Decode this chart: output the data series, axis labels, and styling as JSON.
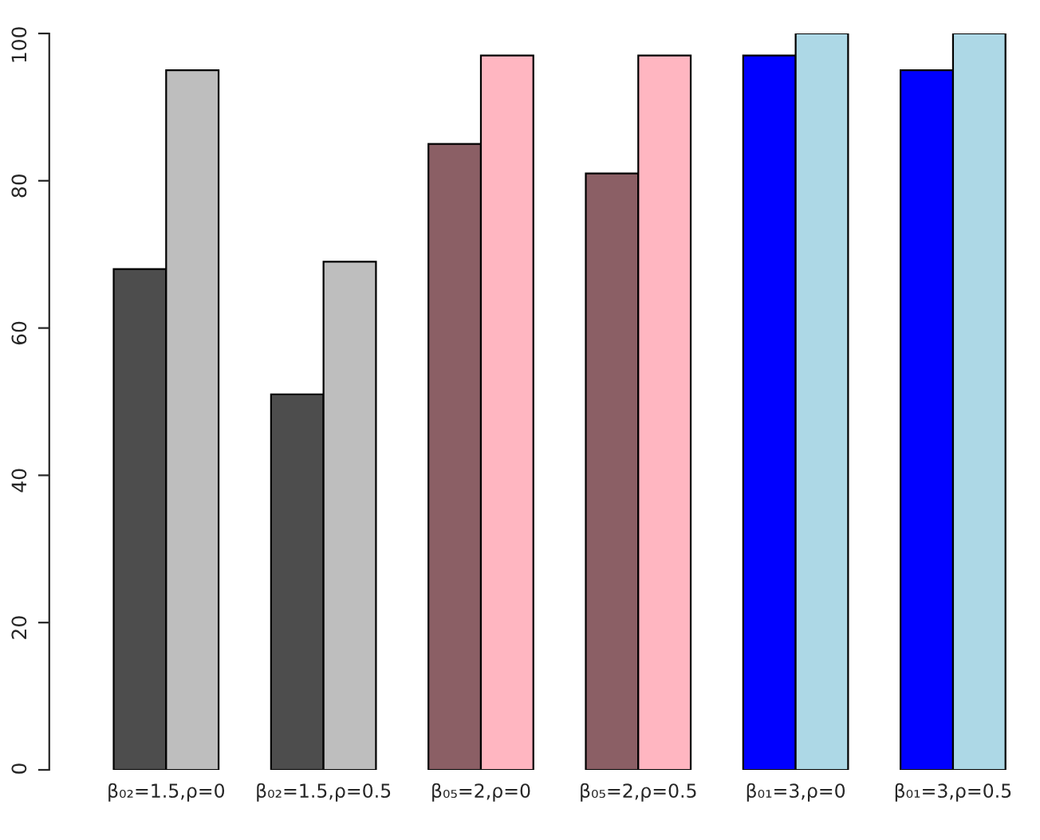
{
  "chart_data": {
    "type": "bar",
    "categories": [
      "β₀₂=1.5,ρ=0",
      "β₀₂=1.5,ρ=0.5",
      "β₀₅=2,ρ=0",
      "β₀₅=2,ρ=0.5",
      "β₀₁=3,ρ=0",
      "β₀₁=3,ρ=0.5"
    ],
    "series": [
      {
        "colors": [
          "#4d4d4d",
          "#4d4d4d",
          "#8b5f65",
          "#8b5f65",
          "#0000ff",
          "#0000ff"
        ],
        "values": [
          68,
          51,
          85,
          81,
          97,
          95
        ]
      },
      {
        "colors": [
          "#bebebe",
          "#bebebe",
          "#ffb6c1",
          "#ffb6c1",
          "#add8e6",
          "#add8e6"
        ],
        "values": [
          95,
          69,
          97,
          97,
          100,
          100
        ]
      }
    ],
    "ylim": [
      0,
      100
    ],
    "yticks": [
      0,
      20,
      40,
      60,
      80,
      100
    ],
    "grid": false,
    "legend": false
  }
}
